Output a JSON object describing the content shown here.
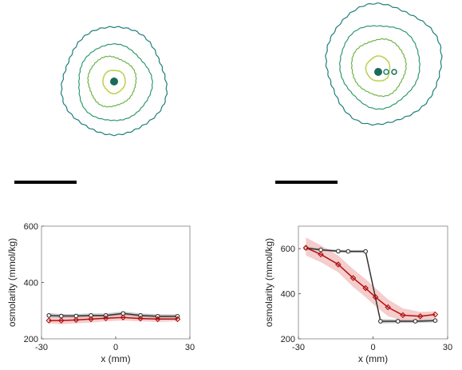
{
  "figure": {
    "contour_panels": [
      {
        "id": "left",
        "contour_colors": [
          "#1e7f7a",
          "#2e9a6e",
          "#6fb44a",
          "#b8cc42",
          "#1a6b5a"
        ],
        "has_central_blob": true
      },
      {
        "id": "right",
        "contour_colors": [
          "#1e7f7a",
          "#2e9a6e",
          "#6fb44a",
          "#b8cc42",
          "#1a6b5a"
        ],
        "has_central_blob": true
      }
    ],
    "scale_bar_color": "#000000"
  },
  "chart_data": [
    {
      "type": "line",
      "xlabel": "x (mm)",
      "ylabel": "osmolarity (mmol/kg)",
      "xlim": [
        -30,
        30
      ],
      "ylim": [
        200,
        600
      ],
      "xticks": [
        "-30",
        "0",
        "30"
      ],
      "yticks": [
        "200",
        "400",
        "600"
      ],
      "grid": false,
      "series": [
        {
          "color": "#333333",
          "marker": "dot",
          "band_color": "#888888",
          "x": [
            -27,
            -22,
            -16,
            -10,
            -4,
            3,
            10,
            17,
            25
          ],
          "y": [
            283,
            281,
            281,
            283,
            283,
            290,
            283,
            280,
            280
          ],
          "band": [
            [
              275,
              291
            ],
            [
              274,
              288
            ],
            [
              274,
              288
            ],
            [
              276,
              290
            ],
            [
              276,
              290
            ],
            [
              283,
              297
            ],
            [
              276,
              290
            ],
            [
              273,
              287
            ],
            [
              273,
              287
            ]
          ]
        },
        {
          "color": "#b01010",
          "marker": "diamond",
          "band_color": "#e89090",
          "x": [
            -27,
            -22,
            -16,
            -10,
            -4,
            3,
            10,
            17,
            25
          ],
          "y": [
            265,
            265,
            267,
            270,
            273,
            276,
            272,
            270,
            270
          ],
          "band": [
            [
              255,
              275
            ],
            [
              252,
              278
            ],
            [
              255,
              279
            ],
            [
              258,
              282
            ],
            [
              262,
              284
            ],
            [
              265,
              287
            ],
            [
              262,
              282
            ],
            [
              260,
              280
            ],
            [
              262,
              278
            ]
          ]
        }
      ]
    },
    {
      "type": "line",
      "xlabel": "x (mm)",
      "ylabel": "osmolarity (mmol/kg)",
      "xlim": [
        -30,
        30
      ],
      "ylim": [
        200,
        700
      ],
      "xticks": [
        "-30",
        "0",
        "30"
      ],
      "yticks": [
        "200",
        "400",
        "600"
      ],
      "grid": false,
      "series": [
        {
          "color": "#333333",
          "marker": "dot",
          "band_color": "#888888",
          "x": [
            -27,
            -21,
            -14,
            -10,
            -3,
            3,
            10,
            17,
            25
          ],
          "y": [
            603,
            595,
            589,
            588,
            588,
            278,
            278,
            278,
            281
          ],
          "band": [
            [
              597,
              609
            ],
            [
              589,
              601
            ],
            [
              583,
              595
            ],
            [
              582,
              594
            ],
            [
              582,
              594
            ],
            [
              268,
              288
            ],
            [
              270,
              286
            ],
            [
              271,
              285
            ],
            [
              273,
              289
            ]
          ]
        },
        {
          "color": "#b01010",
          "marker": "diamond",
          "band_color": "#e89090",
          "x": [
            -27,
            -21,
            -14,
            -8,
            -3,
            1,
            6,
            12,
            19,
            25
          ],
          "y": [
            604,
            575,
            530,
            470,
            425,
            385,
            340,
            305,
            300,
            308
          ],
          "band": [
            [
              570,
              650
            ],
            [
              540,
              615
            ],
            [
              495,
              570
            ],
            [
              430,
              510
            ],
            [
              385,
              465
            ],
            [
              345,
              425
            ],
            [
              300,
              375
            ],
            [
              280,
              335
            ],
            [
              282,
              320
            ],
            [
              292,
              322
            ]
          ]
        }
      ]
    }
  ]
}
